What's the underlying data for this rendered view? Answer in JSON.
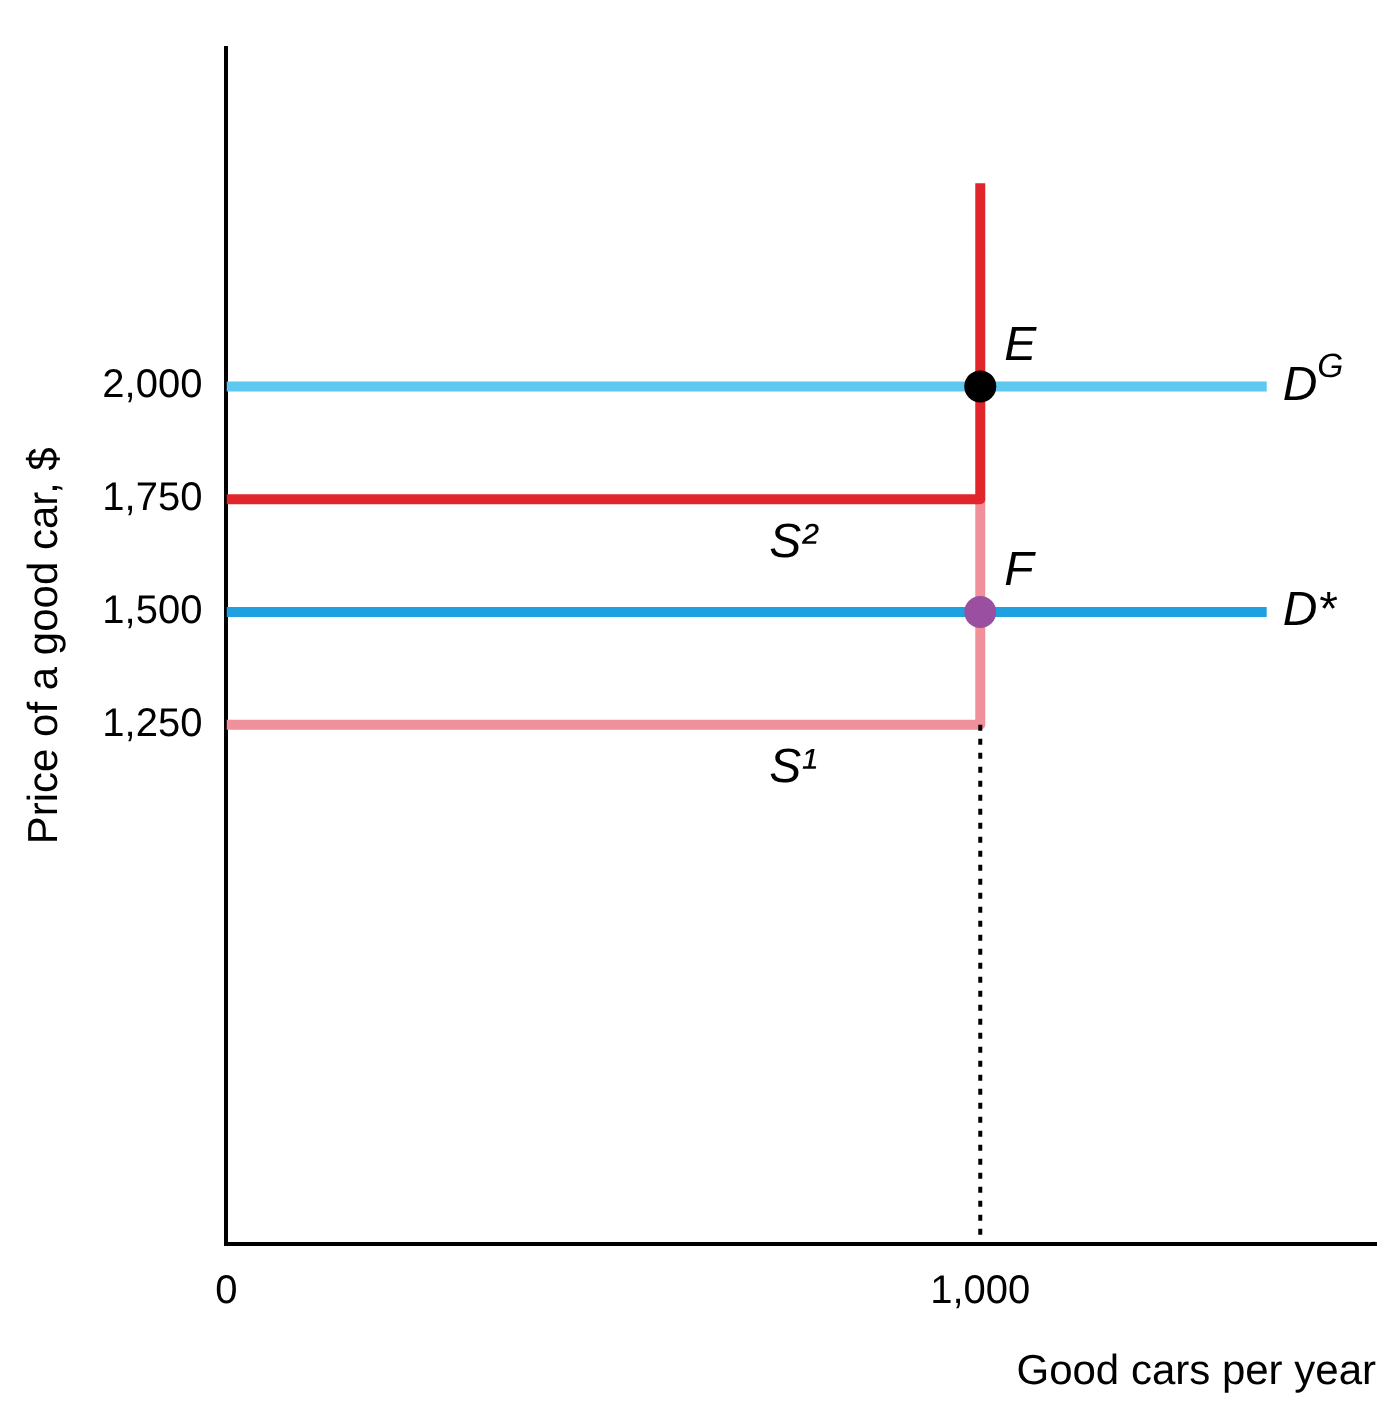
{
  "chart_data": {
    "type": "line",
    "xlabel": "Good cars per year",
    "ylabel": "Price of a good car, $",
    "xlim": [
      0,
      1525
    ],
    "ylim": [
      100,
      2750
    ],
    "xticks": [
      0,
      {
        "value": 1000,
        "label": "1,000"
      }
    ],
    "yticks": [
      {
        "value": 1250,
        "label": "1,250"
      },
      {
        "value": 1500,
        "label": "1,500"
      },
      {
        "value": 1750,
        "label": "1,750"
      },
      {
        "value": 2000,
        "label": "2,000"
      }
    ],
    "grid": false,
    "legend": false,
    "marker": "none",
    "line_style": "solid",
    "series": [
      {
        "name": "D$^{G}$",
        "color": "#5ec8ef",
        "x": [
          0,
          1380
        ],
        "values": [
          2000,
          2000
        ]
      },
      {
        "name": "D*",
        "color": "#1fa0e0",
        "x": [
          0,
          1380
        ],
        "values": [
          1500,
          1500
        ]
      },
      {
        "name": "S¹",
        "color": "#f0909a",
        "x": [
          0,
          1000,
          1000
        ],
        "values": [
          1250,
          1250,
          1750
        ]
      },
      {
        "name": "S²",
        "color": "#e0262a",
        "x": [
          0,
          1000,
          1000
        ],
        "values": [
          1750,
          1750,
          2450
        ]
      },
      {
        "color": "#000000",
        "x": [
          1000,
          1000
        ],
        "values": [
          1250,
          100
        ],
        "line_style": "dotted"
      },
      {
        "type": "scatter",
        "name": "E",
        "color": "#000000",
        "x": [
          1000
        ],
        "values": [
          2000
        ],
        "marker": "circle"
      },
      {
        "type": "scatter",
        "name": "F",
        "color": "#9b4fa0",
        "x": [
          1000
        ],
        "values": [
          1500
        ],
        "marker": "circle"
      }
    ]
  }
}
